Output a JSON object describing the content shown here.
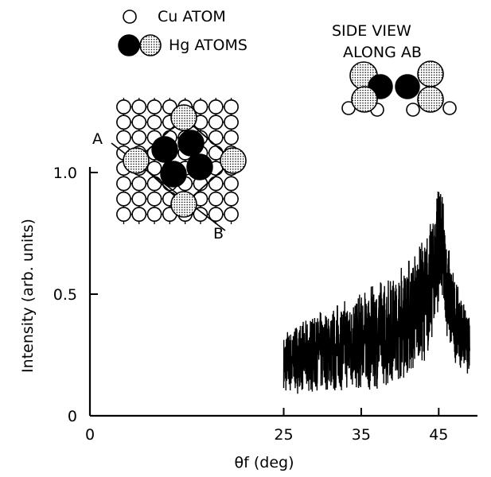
{
  "chart_data": {
    "type": "line",
    "xlabel": "θf (deg)",
    "ylabel": "Intensity (arb. units)",
    "xlim": [
      0,
      50
    ],
    "ylim": [
      0,
      1.0
    ],
    "x_ticks": [
      "0",
      "25",
      "35",
      "45"
    ],
    "y_ticks": [
      "0",
      "0.5",
      "1.0"
    ],
    "series": [
      {
        "x": [
          25.0,
          25.5,
          26.0,
          26.5,
          27.0,
          27.5,
          28.0,
          28.5,
          29.0,
          29.5,
          30.0,
          30.5,
          31.0,
          31.5,
          32.0,
          32.5,
          33.0,
          33.5,
          34.0,
          34.5,
          35.0,
          35.5,
          36.0,
          36.5,
          37.0,
          37.5,
          38.0,
          38.5,
          39.0,
          39.5,
          40.0,
          40.5,
          41.0,
          41.5,
          42.0,
          42.5,
          43.0,
          43.5,
          44.0,
          44.5,
          45.0,
          45.5,
          46.0,
          46.5,
          47.0,
          47.5,
          48.0,
          48.5,
          49.0
        ],
        "y": [
          0.21,
          0.23,
          0.22,
          0.24,
          0.23,
          0.25,
          0.24,
          0.26,
          0.25,
          0.27,
          0.26,
          0.27,
          0.28,
          0.27,
          0.29,
          0.28,
          0.3,
          0.29,
          0.31,
          0.3,
          0.31,
          0.32,
          0.31,
          0.33,
          0.33,
          0.34,
          0.35,
          0.34,
          0.36,
          0.37,
          0.38,
          0.39,
          0.41,
          0.42,
          0.44,
          0.45,
          0.47,
          0.5,
          0.55,
          0.62,
          0.72,
          0.66,
          0.55,
          0.46,
          0.4,
          0.37,
          0.34,
          0.31,
          0.28
        ],
        "amplitude": [
          0.12,
          0.14,
          0.13,
          0.15,
          0.14,
          0.15,
          0.15,
          0.16,
          0.16,
          0.16,
          0.17,
          0.17,
          0.17,
          0.18,
          0.18,
          0.18,
          0.19,
          0.19,
          0.2,
          0.2,
          0.2,
          0.21,
          0.21,
          0.21,
          0.22,
          0.22,
          0.22,
          0.23,
          0.23,
          0.23,
          0.24,
          0.24,
          0.24,
          0.25,
          0.25,
          0.25,
          0.26,
          0.26,
          0.26,
          0.27,
          0.27,
          0.24,
          0.22,
          0.2,
          0.18,
          0.16,
          0.15,
          0.13,
          0.12
        ]
      }
    ]
  },
  "inset": {
    "legend": {
      "cu_label": "Cu ATOM",
      "hg_label": "Hg ATOMS"
    },
    "side_view_title": [
      "SIDE VIEW",
      "ALONG AB"
    ],
    "point_a": "A",
    "point_b": "B"
  }
}
